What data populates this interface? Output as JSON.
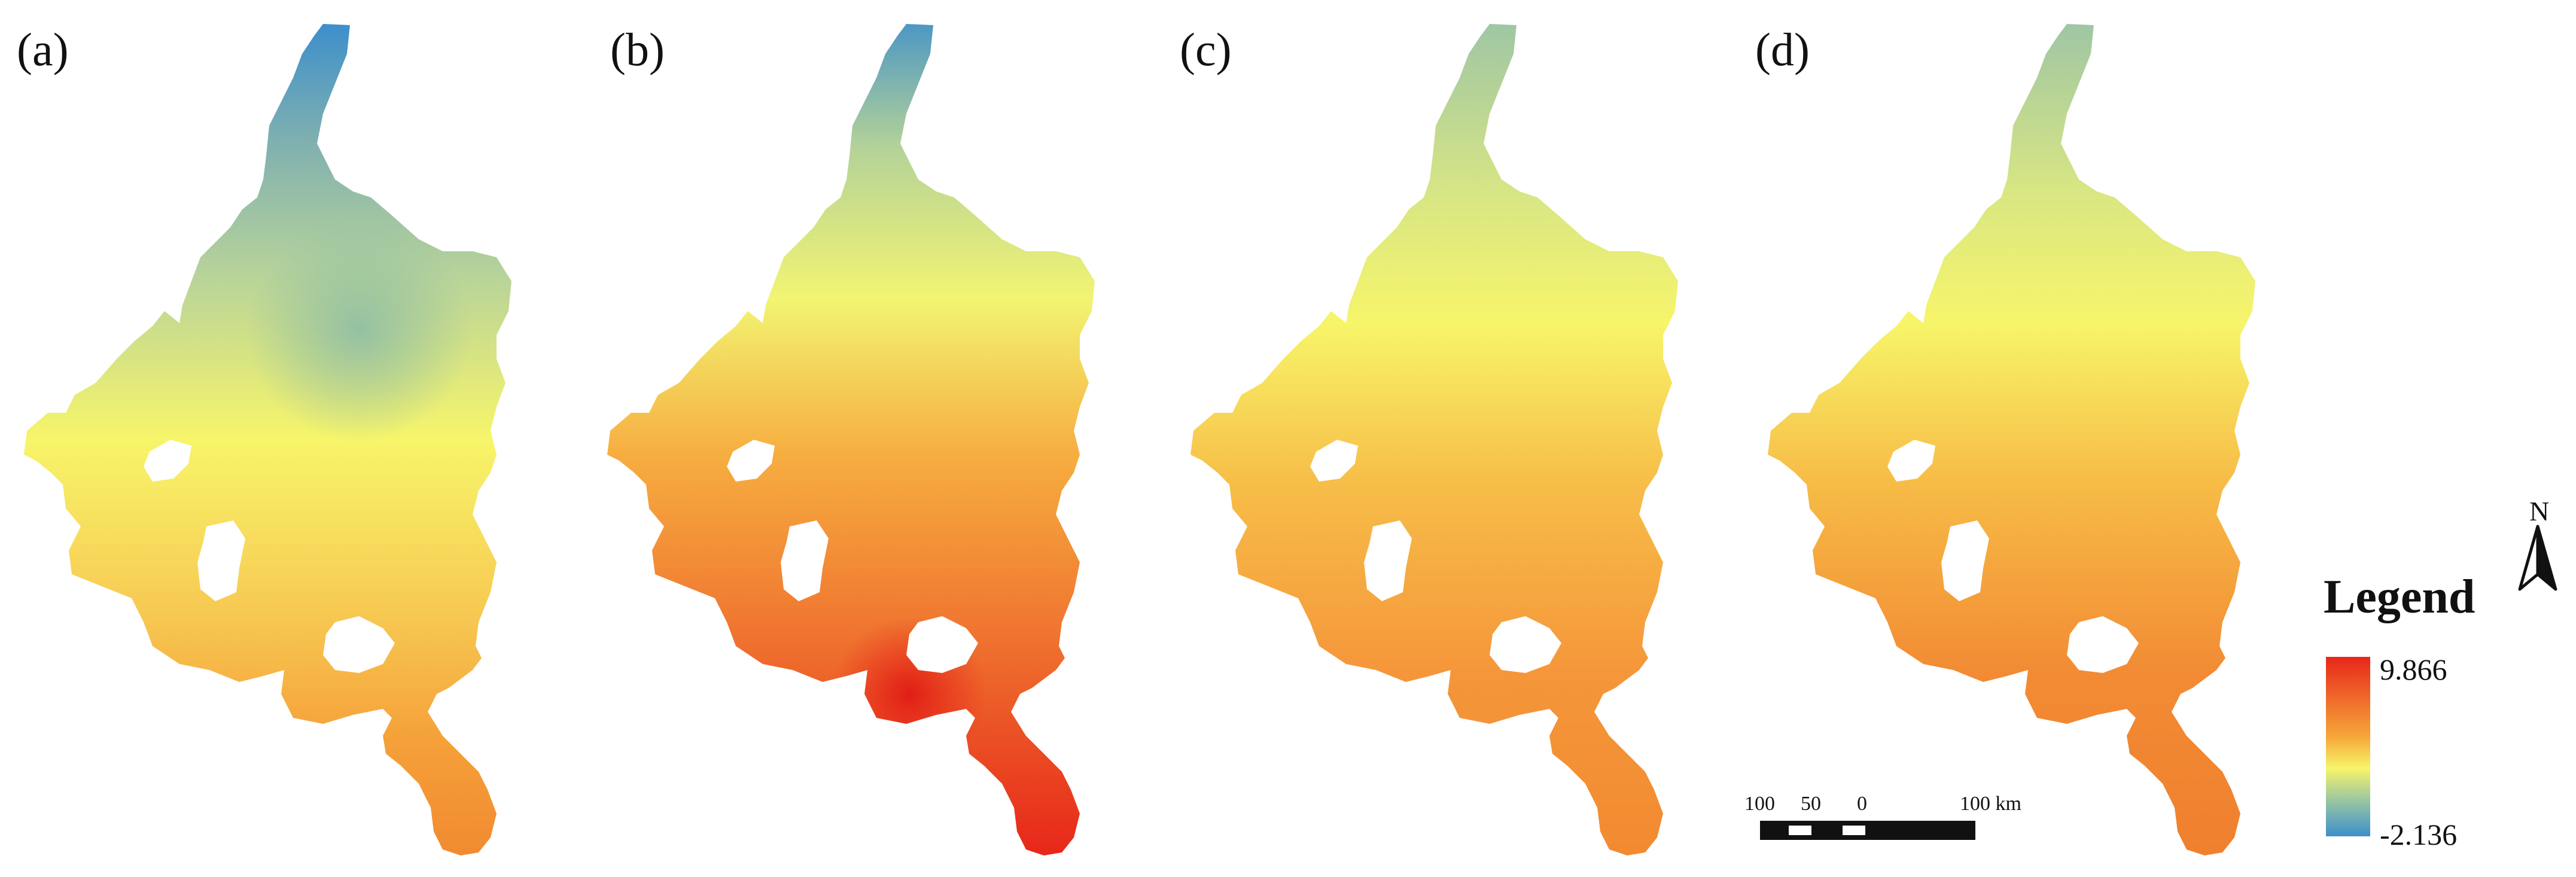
{
  "panels": [
    {
      "label": "(a)"
    },
    {
      "label": "(b)"
    },
    {
      "label": "(c)"
    },
    {
      "label": "(d)"
    }
  ],
  "legend": {
    "title": "Legend",
    "max_label": "9.866",
    "min_label": "-2.136",
    "colors": [
      "#e8271a",
      "#f6a83a",
      "#f7f56a",
      "#8fc1a7",
      "#3d8fcb"
    ]
  },
  "scale_bar": {
    "labels": [
      "100",
      "50",
      "0",
      "100 km"
    ]
  },
  "north_arrow": {
    "letter": "N",
    "icon": "north-arrow-icon"
  }
}
